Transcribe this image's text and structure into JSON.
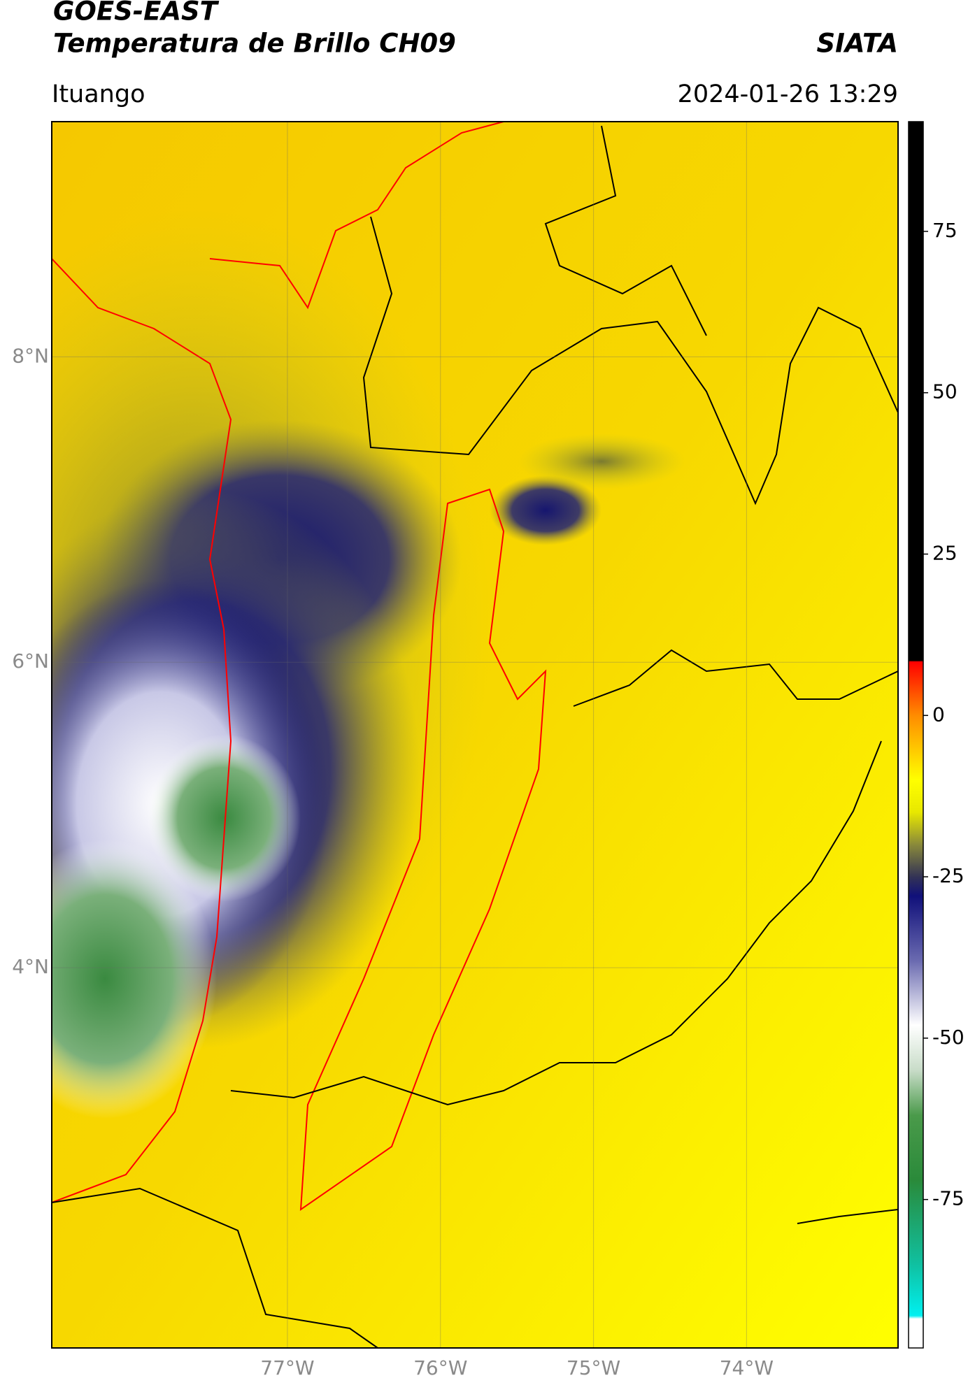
{
  "header": {
    "title": "GOES-EAST",
    "subtitle": "Temperatura de Brillo CH09",
    "brand": "SIATA",
    "location": "Ituango",
    "datetime": "2024-01-26 13:29"
  },
  "map": {
    "lonlim": [
      -78.54,
      -73.01
    ],
    "latlim": [
      1.51,
      9.54
    ],
    "lon_ticks": [
      {
        "value": -77,
        "label": "77°W"
      },
      {
        "value": -76,
        "label": "76°W"
      },
      {
        "value": -75,
        "label": "75°W"
      },
      {
        "value": -74,
        "label": "74°W"
      }
    ],
    "lat_ticks": [
      {
        "value": 8,
        "label": "8°N"
      },
      {
        "value": 6,
        "label": "6°N"
      },
      {
        "value": 4,
        "label": "4°N"
      }
    ],
    "grid": true
  },
  "colorbar": {
    "lim": [
      -98,
      92
    ],
    "ticks": [
      75,
      50,
      25,
      0,
      -25,
      -50,
      -75
    ],
    "stops": [
      [
        92,
        "#000000"
      ],
      [
        8.5,
        "#000000"
      ],
      [
        8.3,
        "#ff0000"
      ],
      [
        0,
        "#ff8c00"
      ],
      [
        -10,
        "#ffff00"
      ],
      [
        -15,
        "#e8e800"
      ],
      [
        -20,
        "#8a8a3a"
      ],
      [
        -25,
        "#333355"
      ],
      [
        -28,
        "#10107a"
      ],
      [
        -38,
        "#6a6ab0"
      ],
      [
        -48,
        "#ffffff"
      ],
      [
        -55,
        "#c8dcc8"
      ],
      [
        -62,
        "#4a9a4a"
      ],
      [
        -72,
        "#2a8a3a"
      ],
      [
        -85,
        "#10c0a0"
      ],
      [
        -93,
        "#00f0f0"
      ],
      [
        -93.5,
        "#ffffff"
      ],
      [
        -98,
        "#ffffff"
      ]
    ]
  }
}
